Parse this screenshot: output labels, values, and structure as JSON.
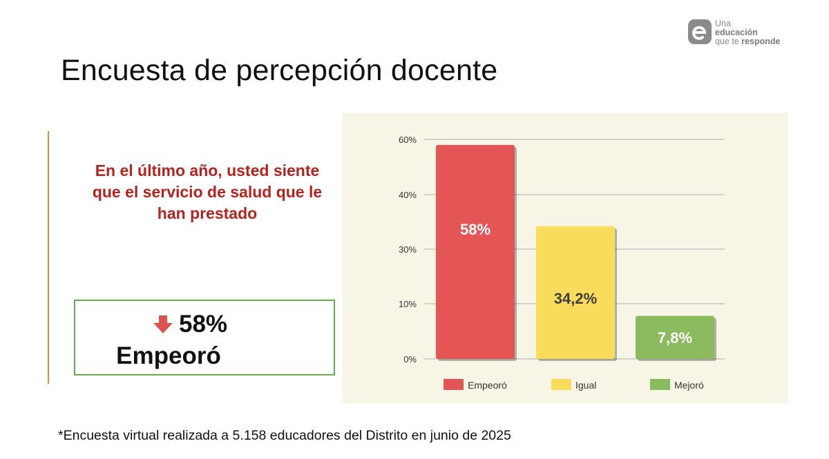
{
  "logo": {
    "line1": "Una",
    "line2": "educación",
    "line3_prefix": "que te ",
    "line3_bold": "responde"
  },
  "title": "Encuesta de percepción docente",
  "question": "En el último año, usted siente que el servicio de salud que le han prestado",
  "result": {
    "value": "58%",
    "label": "Empeoró",
    "icon": "arrow-down-icon"
  },
  "footnote": "*Encuesta virtual realizada a 5.158 educadores del Distrito en junio de 2025",
  "colors": {
    "title_text": "#111111",
    "question_text": "#b5231c",
    "accent_line": "#e58a32",
    "box_border": "#6aa84f",
    "chart_bg": "#f7f6e6"
  },
  "chart_data": {
    "type": "bar",
    "categories": [
      "Empeoró",
      "Igual",
      "Mejoró"
    ],
    "values": [
      58,
      34.2,
      7.8
    ],
    "value_labels": [
      "58%",
      "34,2%",
      "7,8%"
    ],
    "colors": [
      "#e45555",
      "#fadc5c",
      "#8cba5e"
    ],
    "label_colors": [
      "#ffffff",
      "#3d3d3d",
      "#ffffff"
    ],
    "yticks": [
      {
        "value": 0,
        "label": "0%"
      },
      {
        "value": 10,
        "label": "10%"
      },
      {
        "value": 30,
        "label": "30%"
      },
      {
        "value": 40,
        "label": "40%"
      },
      {
        "value": 60,
        "label": "60%"
      }
    ],
    "legend": [
      "Empeoró",
      "Igual",
      "Mejoró"
    ],
    "legend_position": "bottom",
    "grid": true,
    "title": "",
    "xlabel": "",
    "ylabel": ""
  }
}
